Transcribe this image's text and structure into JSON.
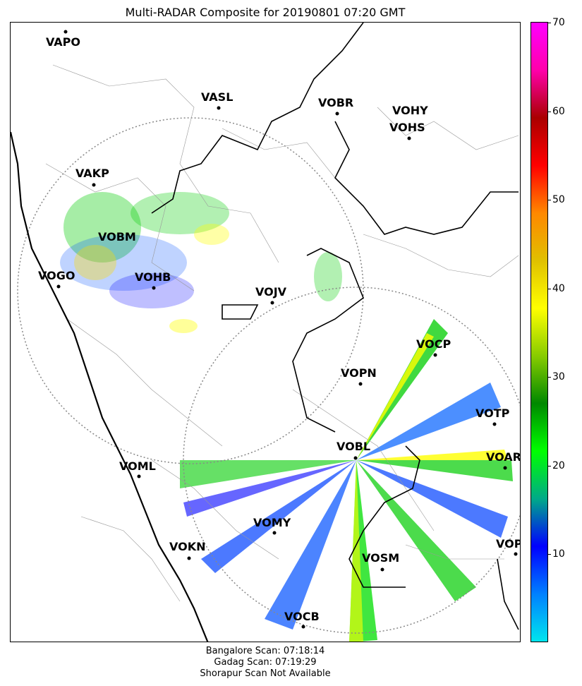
{
  "title": "Multi-RADAR Composite for 20190801 07:20 GMT",
  "footer": {
    "line1": "Bangalore Scan: 07:18:14",
    "line2": "Gadag Scan: 07:19:29",
    "line3": "Shorapur Scan Not Available"
  },
  "colorbar": {
    "min": 0,
    "max": 70,
    "ticks": [
      "10",
      "20",
      "30",
      "40",
      "50",
      "60",
      "70"
    ],
    "colors": [
      "#00e5ee",
      "#0080ff",
      "#0000ff",
      "#00aa88",
      "#00ff00",
      "#008800",
      "#88cc00",
      "#ffff00",
      "#e0c000",
      "#ff8800",
      "#ff0000",
      "#aa0000",
      "#ff00aa",
      "#ff00ff"
    ]
  },
  "stations": [
    "VAPO",
    "VASL",
    "VOBR",
    "VOHY",
    "VOHS",
    "VAKP",
    "VOBM",
    "VOGO",
    "VOHB",
    "VOJV",
    "VOCP",
    "VOPN",
    "VOTP",
    "VOBL",
    "VOAR",
    "VOML",
    "VOMY",
    "VOKN",
    "VOPC",
    "VOSM",
    "VOCB"
  ]
}
